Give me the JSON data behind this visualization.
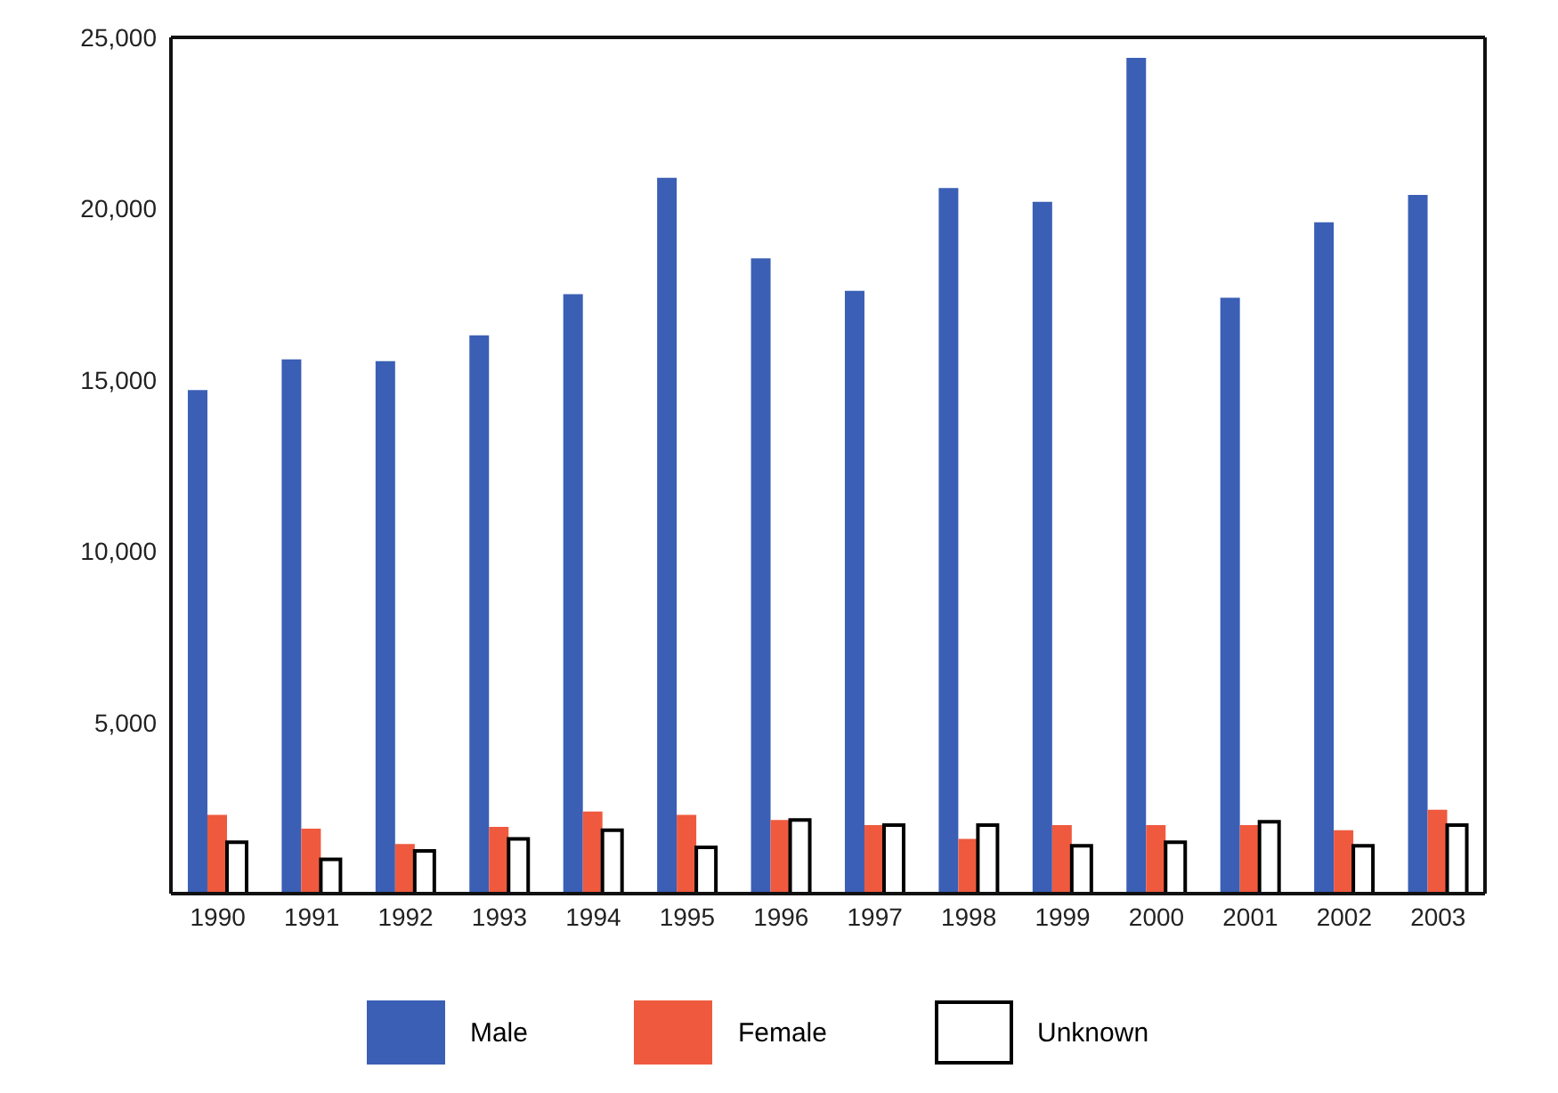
{
  "chart_data": {
    "type": "bar",
    "categories": [
      "1990",
      "1991",
      "1992",
      "1993",
      "1994",
      "1995",
      "1996",
      "1997",
      "1998",
      "1999",
      "2000",
      "2001",
      "2002",
      "2003"
    ],
    "series": [
      {
        "name": "Male",
        "color": "#3a5fb5",
        "values": [
          14700,
          15600,
          15550,
          16300,
          17500,
          20900,
          18550,
          17600,
          20600,
          20200,
          24400,
          17400,
          19600,
          20400
        ]
      },
      {
        "name": "Female",
        "color": "#ef5a3e",
        "values": [
          2300,
          1900,
          1450,
          1950,
          2400,
          2300,
          2150,
          2000,
          1600,
          2000,
          2000,
          2000,
          1850,
          2450
        ]
      },
      {
        "name": "Unknown",
        "color": "#ffffff",
        "values": [
          1500,
          1000,
          1250,
          1600,
          1850,
          1350,
          2150,
          2000,
          2000,
          1400,
          1500,
          2100,
          1400,
          2000
        ]
      }
    ],
    "ylim": [
      0,
      25000
    ],
    "yticks": [
      {
        "value": 0,
        "label": null
      },
      {
        "value": 5000,
        "label": "5,000"
      },
      {
        "value": 10000,
        "label": "10,000"
      },
      {
        "value": 15000,
        "label": "15,000"
      },
      {
        "value": 20000,
        "label": "20,000"
      },
      {
        "value": 25000,
        "label": "25,000"
      }
    ],
    "grid": false,
    "legend": "bottom"
  }
}
